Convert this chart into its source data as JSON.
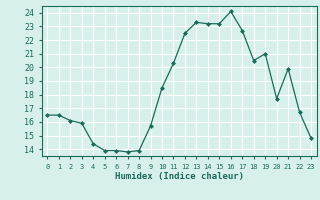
{
  "x": [
    0,
    1,
    2,
    3,
    4,
    5,
    6,
    7,
    8,
    9,
    10,
    11,
    12,
    13,
    14,
    15,
    16,
    17,
    18,
    19,
    20,
    21,
    22,
    23
  ],
  "y": [
    16.5,
    16.5,
    16.1,
    15.9,
    14.4,
    13.9,
    13.9,
    13.8,
    13.9,
    15.7,
    18.5,
    20.3,
    22.5,
    23.3,
    23.2,
    23.2,
    24.1,
    22.7,
    20.5,
    21.0,
    17.7,
    19.9,
    16.7,
    14.8
  ],
  "line_color": "#1a6b5a",
  "marker": "D",
  "marker_size": 2,
  "bg_color": "#d8f0ec",
  "grid_color": "#ffffff",
  "tick_color": "#1a6b5a",
  "xlabel": "Humidex (Indice chaleur)",
  "ylabel_ticks": [
    14,
    15,
    16,
    17,
    18,
    19,
    20,
    21,
    22,
    23,
    24
  ],
  "xlabel_ticks": [
    0,
    1,
    2,
    3,
    4,
    5,
    6,
    7,
    8,
    9,
    10,
    11,
    12,
    13,
    14,
    15,
    16,
    17,
    18,
    19,
    20,
    21,
    22,
    23
  ],
  "ylim": [
    13.5,
    24.5
  ],
  "xlim": [
    -0.5,
    23.5
  ]
}
